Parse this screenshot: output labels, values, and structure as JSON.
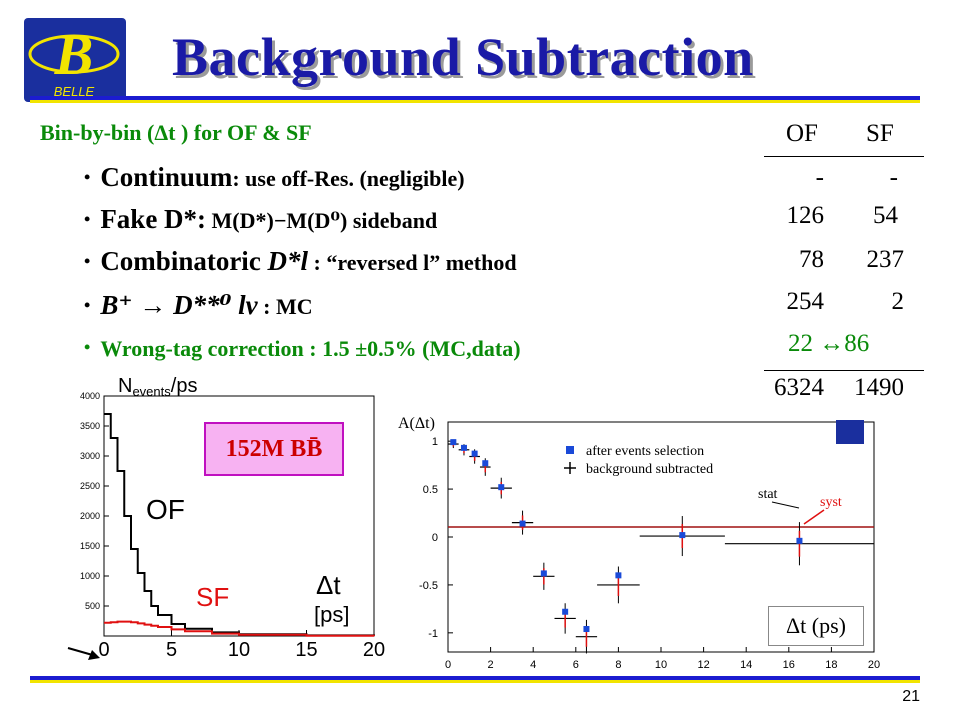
{
  "header": {
    "title": "Background Subtraction",
    "logo_text": "BELLE"
  },
  "subtitle": "Bin-by-bin (Δt ) for OF & SF",
  "bullets": [
    {
      "bold": "Continuum",
      "rest": ": use off-Res. (negligible)"
    },
    {
      "bold": "Fake D*:",
      "rest": " M(D*)−M(D⁰) sideband"
    },
    {
      "bold": "Combinatoric ",
      "italic": "D*l",
      "rest": " : “reversed l” method"
    },
    {
      "bold": "B⁺ → D**⁰ lν",
      "rest": " : MC"
    },
    {
      "bold": "Wrong-tag correction : 1.5 ±0.5% (MC,data)",
      "rest": ""
    }
  ],
  "table": {
    "headers": [
      "OF",
      "SF"
    ],
    "rows": [
      [
        "-",
        "-"
      ],
      [
        "126",
        "54"
      ],
      [
        "78",
        "237"
      ],
      [
        "254",
        "2"
      ],
      [
        "22 ↔86",
        ""
      ]
    ],
    "total": [
      "6324",
      "1490"
    ]
  },
  "left_plot": {
    "ylabel": "N",
    "ylabel_sub": "events",
    "ylabel_tail": "/ps",
    "y_ticks": [
      "4000",
      "3500",
      "3000",
      "2500",
      "2000",
      "1500",
      "1000",
      "500"
    ],
    "x_ticks": [
      "0",
      "5",
      "10",
      "15",
      "20"
    ],
    "of_label": "OF",
    "sf_label": "SF",
    "xlabel": "Δt",
    "xunit": "[ps]",
    "of_color": "#000000",
    "sf_color": "#e01010"
  },
  "bb_label": "152M BB̄",
  "right_plot": {
    "ylabel": "A(Δt)",
    "y_ticks": [
      "1",
      "0.5",
      "0",
      "-0.5",
      "-1"
    ],
    "x_ticks": [
      "0",
      "2",
      "4",
      "6",
      "8",
      "10",
      "12",
      "14",
      "16",
      "18",
      "20"
    ],
    "legend": [
      "after events selection",
      "background subtracted"
    ],
    "stat_label": "stat",
    "syst_label": "syst"
  },
  "dt_label": "Δt (ps)",
  "page_number": "21",
  "chart_data": [
    {
      "type": "line",
      "title": "",
      "ylabel": "Nevents/ps",
      "xlabel": "Δt [ps]",
      "ylim": [
        0,
        4000
      ],
      "xlim": [
        0,
        20
      ],
      "series": [
        {
          "name": "OF",
          "x": [
            0,
            0.5,
            1,
            1.5,
            2,
            2.5,
            3,
            3.5,
            4,
            5,
            6,
            8,
            10,
            15,
            20
          ],
          "values": [
            3700,
            3300,
            2750,
            2000,
            1450,
            1050,
            750,
            500,
            350,
            200,
            120,
            60,
            30,
            10,
            5
          ]
        },
        {
          "name": "SF",
          "x": [
            0,
            0.5,
            1,
            1.5,
            2,
            2.5,
            3,
            3.5,
            4,
            5,
            6,
            8,
            10,
            15,
            20
          ],
          "values": [
            220,
            230,
            240,
            240,
            230,
            210,
            190,
            170,
            150,
            110,
            80,
            40,
            20,
            5,
            2
          ]
        }
      ]
    },
    {
      "type": "scatter",
      "title": "",
      "ylabel": "A(Δt)",
      "xlabel": "Δt (ps)",
      "ylim": [
        -1.2,
        1.2
      ],
      "xlim": [
        0,
        20
      ],
      "series": [
        {
          "name": "after events selection",
          "x": [
            0.25,
            0.75,
            1.25,
            1.75,
            2.5,
            3.5,
            4.5,
            5.5,
            6.5,
            8,
            11,
            16.5
          ],
          "values": [
            0.99,
            0.93,
            0.87,
            0.77,
            0.52,
            0.14,
            -0.38,
            -0.78,
            -0.96,
            -0.4,
            0.02,
            -0.04
          ]
        },
        {
          "name": "background subtracted",
          "x": [
            0.25,
            0.75,
            1.25,
            1.75,
            2.5,
            3.5,
            4.5,
            5.5,
            6.5,
            8,
            11,
            16.5
          ],
          "values": [
            0.97,
            0.91,
            0.84,
            0.73,
            0.51,
            0.15,
            -0.41,
            -0.85,
            -1.04,
            -0.5,
            0.01,
            -0.07
          ]
        }
      ]
    }
  ]
}
